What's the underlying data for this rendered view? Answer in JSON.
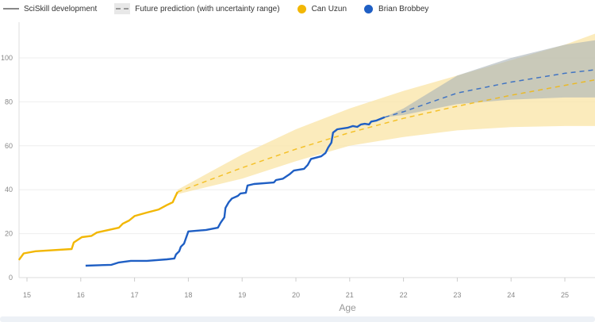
{
  "legend": {
    "development_label": "SciSkill development",
    "prediction_label": "Future prediction (with uncertainty range)",
    "players": [
      {
        "name": "Can Uzun",
        "color": "#F2B705"
      },
      {
        "name": "Brian Brobbey",
        "color": "#1F5FC4"
      }
    ]
  },
  "chart_data": {
    "type": "line",
    "xlabel": "Age",
    "ylabel": "",
    "xlim": [
      14.85,
      25.56
    ],
    "ylim": [
      0,
      115
    ],
    "x_ticks": [
      15,
      16,
      17,
      18,
      19,
      20,
      21,
      22,
      23,
      24,
      25
    ],
    "y_ticks": [
      0,
      20,
      40,
      60,
      80,
      100
    ],
    "grid": "horizontal",
    "legend_position": "top-left",
    "series": [
      {
        "name": "Can Uzun",
        "color": "#F2B705",
        "band_color": "#F9E4A6",
        "actual": [
          [
            14.85,
            8
          ],
          [
            14.94,
            11
          ],
          [
            15.16,
            12
          ],
          [
            15.83,
            13
          ],
          [
            15.87,
            16
          ],
          [
            16.02,
            18.4
          ],
          [
            16.2,
            19
          ],
          [
            16.3,
            20.5
          ],
          [
            16.71,
            22.7
          ],
          [
            16.78,
            24.5
          ],
          [
            16.9,
            26
          ],
          [
            17.0,
            28
          ],
          [
            17.23,
            29.6
          ],
          [
            17.45,
            31
          ],
          [
            17.6,
            33
          ],
          [
            17.71,
            34.3
          ],
          [
            17.77,
            37.5
          ],
          [
            17.8,
            39
          ]
        ],
        "prediction": [
          [
            17.8,
            39
          ],
          [
            19,
            50
          ],
          [
            20,
            58.5
          ],
          [
            21,
            66
          ],
          [
            22,
            72.5
          ],
          [
            23,
            78
          ],
          [
            24,
            83
          ],
          [
            25,
            87.5
          ],
          [
            25.56,
            90
          ]
        ],
        "upper": [
          [
            17.8,
            40
          ],
          [
            19,
            56
          ],
          [
            20,
            67.5
          ],
          [
            21,
            77
          ],
          [
            22,
            85
          ],
          [
            23,
            92
          ],
          [
            24,
            99
          ],
          [
            25,
            106
          ],
          [
            25.56,
            111
          ]
        ],
        "lower": [
          [
            17.8,
            38
          ],
          [
            19,
            45
          ],
          [
            20,
            53
          ],
          [
            21,
            60
          ],
          [
            22,
            64
          ],
          [
            23,
            67
          ],
          [
            24,
            68.5
          ],
          [
            25,
            69
          ],
          [
            25.56,
            69
          ]
        ]
      },
      {
        "name": "Brian Brobbey",
        "color": "#1F5FC4",
        "band_color": "#A9B2B8",
        "actual": [
          [
            16.09,
            5.4
          ],
          [
            16.57,
            5.8
          ],
          [
            16.71,
            6.9
          ],
          [
            16.93,
            7.6
          ],
          [
            17.23,
            7.6
          ],
          [
            17.6,
            8.3
          ],
          [
            17.74,
            8.7
          ],
          [
            17.77,
            10.5
          ],
          [
            17.83,
            12
          ],
          [
            17.86,
            14
          ],
          [
            17.92,
            15.5
          ],
          [
            18.0,
            21
          ],
          [
            18.33,
            21.7
          ],
          [
            18.55,
            22.7
          ],
          [
            18.6,
            25
          ],
          [
            18.67,
            27.4
          ],
          [
            18.69,
            31.7
          ],
          [
            18.75,
            34.3
          ],
          [
            18.81,
            36
          ],
          [
            18.92,
            37.2
          ],
          [
            18.97,
            38.3
          ],
          [
            19.07,
            38.6
          ],
          [
            19.1,
            41.9
          ],
          [
            19.22,
            42.6
          ],
          [
            19.59,
            43.3
          ],
          [
            19.63,
            44.4
          ],
          [
            19.76,
            45
          ],
          [
            19.88,
            47
          ],
          [
            19.96,
            48.7
          ],
          [
            20.15,
            49.5
          ],
          [
            20.22,
            51.3
          ],
          [
            20.28,
            54
          ],
          [
            20.47,
            55.2
          ],
          [
            20.55,
            56.7
          ],
          [
            20.6,
            59.2
          ],
          [
            20.66,
            61.4
          ],
          [
            20.69,
            66
          ],
          [
            20.77,
            67.5
          ],
          [
            20.96,
            68.2
          ],
          [
            21.06,
            69
          ],
          [
            21.14,
            68.6
          ],
          [
            21.21,
            69.7
          ],
          [
            21.28,
            70
          ],
          [
            21.36,
            69.7
          ],
          [
            21.4,
            71
          ],
          [
            21.5,
            71.5
          ],
          [
            21.65,
            73
          ]
        ],
        "prediction": [
          [
            21.65,
            73
          ],
          [
            22,
            75.5
          ],
          [
            23,
            84
          ],
          [
            24,
            89
          ],
          [
            25,
            93
          ],
          [
            25.56,
            94.6
          ]
        ],
        "upper": [
          [
            21.65,
            73
          ],
          [
            22,
            77
          ],
          [
            23,
            92
          ],
          [
            24,
            100
          ],
          [
            25,
            106
          ],
          [
            25.56,
            108
          ]
        ],
        "lower": [
          [
            21.65,
            73
          ],
          [
            22,
            74
          ],
          [
            23,
            79
          ],
          [
            24,
            81
          ],
          [
            25,
            82
          ],
          [
            25.56,
            82
          ]
        ]
      }
    ]
  }
}
